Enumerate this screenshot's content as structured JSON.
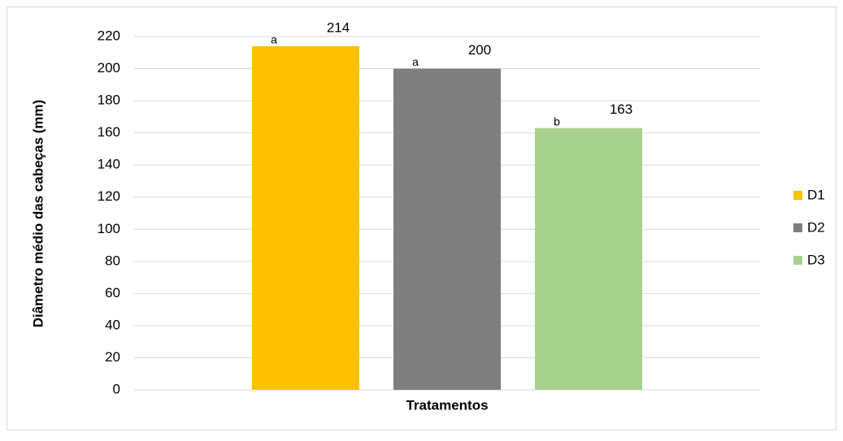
{
  "chart_data": {
    "type": "bar",
    "ylabel": "Diâmetro médio das cabeças (mm)",
    "categories": [
      "Tratamentos"
    ],
    "series": [
      {
        "name": "D1",
        "color": "#ffc000",
        "values": [
          214
        ]
      },
      {
        "name": "D2",
        "color": "#7f7f7f",
        "values": [
          200
        ]
      },
      {
        "name": "D3",
        "color": "#a9d18e",
        "values": [
          163
        ]
      }
    ],
    "annotations": [
      "a",
      "a",
      "b"
    ],
    "ylim": [
      0,
      220
    ],
    "yticks": [
      0,
      20,
      40,
      60,
      80,
      100,
      120,
      140,
      160,
      180,
      200,
      220
    ],
    "grid": true,
    "legend": "right"
  }
}
